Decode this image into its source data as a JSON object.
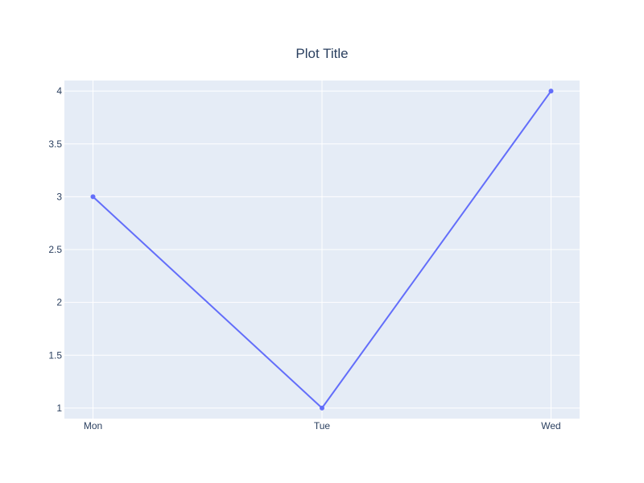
{
  "colors": {
    "plot_background": "#e5ecf6",
    "grid": "#ffffff",
    "line": "#636efa",
    "text": "#2a3f5f"
  },
  "chart_data": {
    "type": "line",
    "title": "Plot Title",
    "xlabel": "",
    "ylabel": "",
    "categories": [
      "Mon",
      "Tue",
      "Wed"
    ],
    "series": [
      {
        "values": [
          3,
          1,
          4
        ],
        "mode": "lines+markers"
      }
    ],
    "ylim": [
      0.9,
      4.1
    ],
    "yticks": [
      1,
      1.5,
      2,
      2.5,
      3,
      3.5,
      4
    ],
    "ytick_labels": [
      "1",
      "1.5",
      "2",
      "2.5",
      "3",
      "3.5",
      "4"
    ],
    "grid": true,
    "legend": "none"
  }
}
